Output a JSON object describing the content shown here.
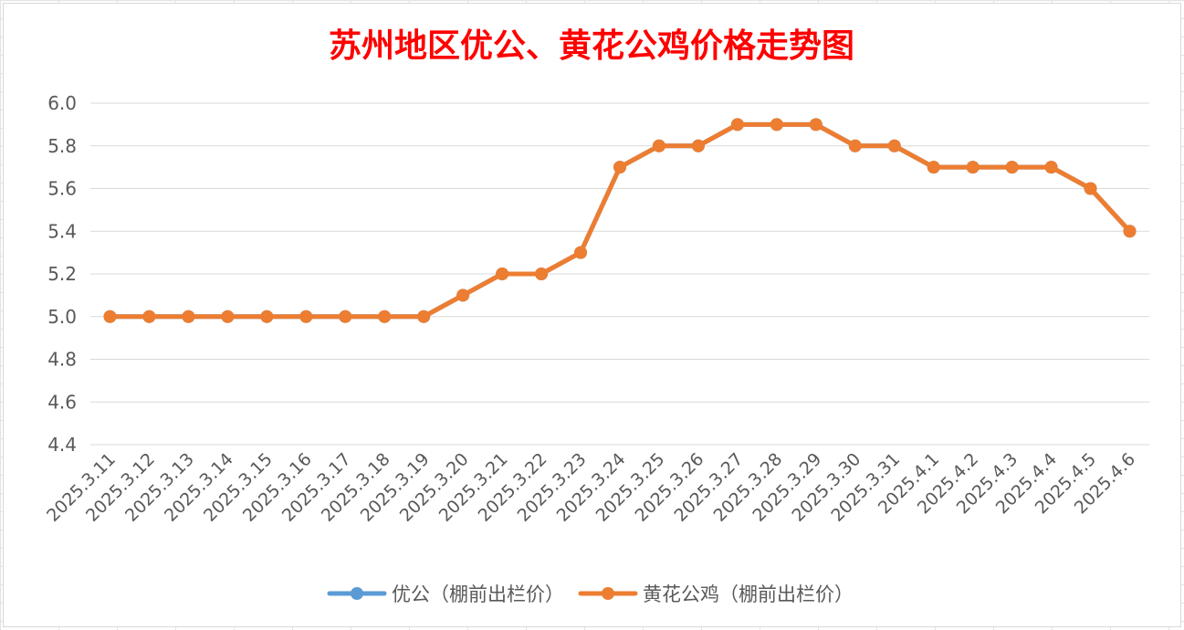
{
  "chart_data": {
    "type": "line",
    "title": "苏州地区优公、黄花公鸡价格走势图",
    "xlabel": "",
    "ylabel": "",
    "ylim": [
      4.4,
      6.0
    ],
    "yticks": [
      "6.0",
      "5.8",
      "5.6",
      "5.4",
      "5.2",
      "5.0",
      "4.8",
      "4.6",
      "4.4"
    ],
    "grid": true,
    "legend_position": "bottom",
    "categories": [
      "2025.3.11",
      "2025.3.12",
      "2025.3.13",
      "2025.3.14",
      "2025.3.15",
      "2025.3.16",
      "2025.3.17",
      "2025.3.18",
      "2025.3.19",
      "2025.3.20",
      "2025.3.21",
      "2025.3.22",
      "2025.3.23",
      "2025.3.24",
      "2025.3.25",
      "2025.3.26",
      "2025.3.27",
      "2025.3.28",
      "2025.3.29",
      "2025.3.30",
      "2025.3.31",
      "2025.4.1",
      "2025.4.2",
      "2025.4.3",
      "2025.4.4",
      "2025.4.5",
      "2025.4.6"
    ],
    "series": [
      {
        "name": "优公（棚前出栏价）",
        "color": "#5b9bd5",
        "values": [
          5.0,
          5.0,
          5.0,
          5.0,
          5.0,
          5.0,
          5.0,
          5.0,
          5.0,
          5.1,
          5.2,
          5.2,
          5.3,
          5.7,
          5.8,
          5.8,
          5.9,
          5.9,
          5.9,
          5.8,
          5.8,
          5.7,
          5.7,
          5.7,
          5.7,
          5.6,
          5.4
        ]
      },
      {
        "name": "黄花公鸡（棚前出栏价）",
        "color": "#ed7d31",
        "values": [
          5.0,
          5.0,
          5.0,
          5.0,
          5.0,
          5.0,
          5.0,
          5.0,
          5.0,
          5.1,
          5.2,
          5.2,
          5.3,
          5.7,
          5.8,
          5.8,
          5.9,
          5.9,
          5.9,
          5.8,
          5.8,
          5.7,
          5.7,
          5.7,
          5.7,
          5.6,
          5.4
        ]
      }
    ],
    "title_color": "#ff0000"
  }
}
